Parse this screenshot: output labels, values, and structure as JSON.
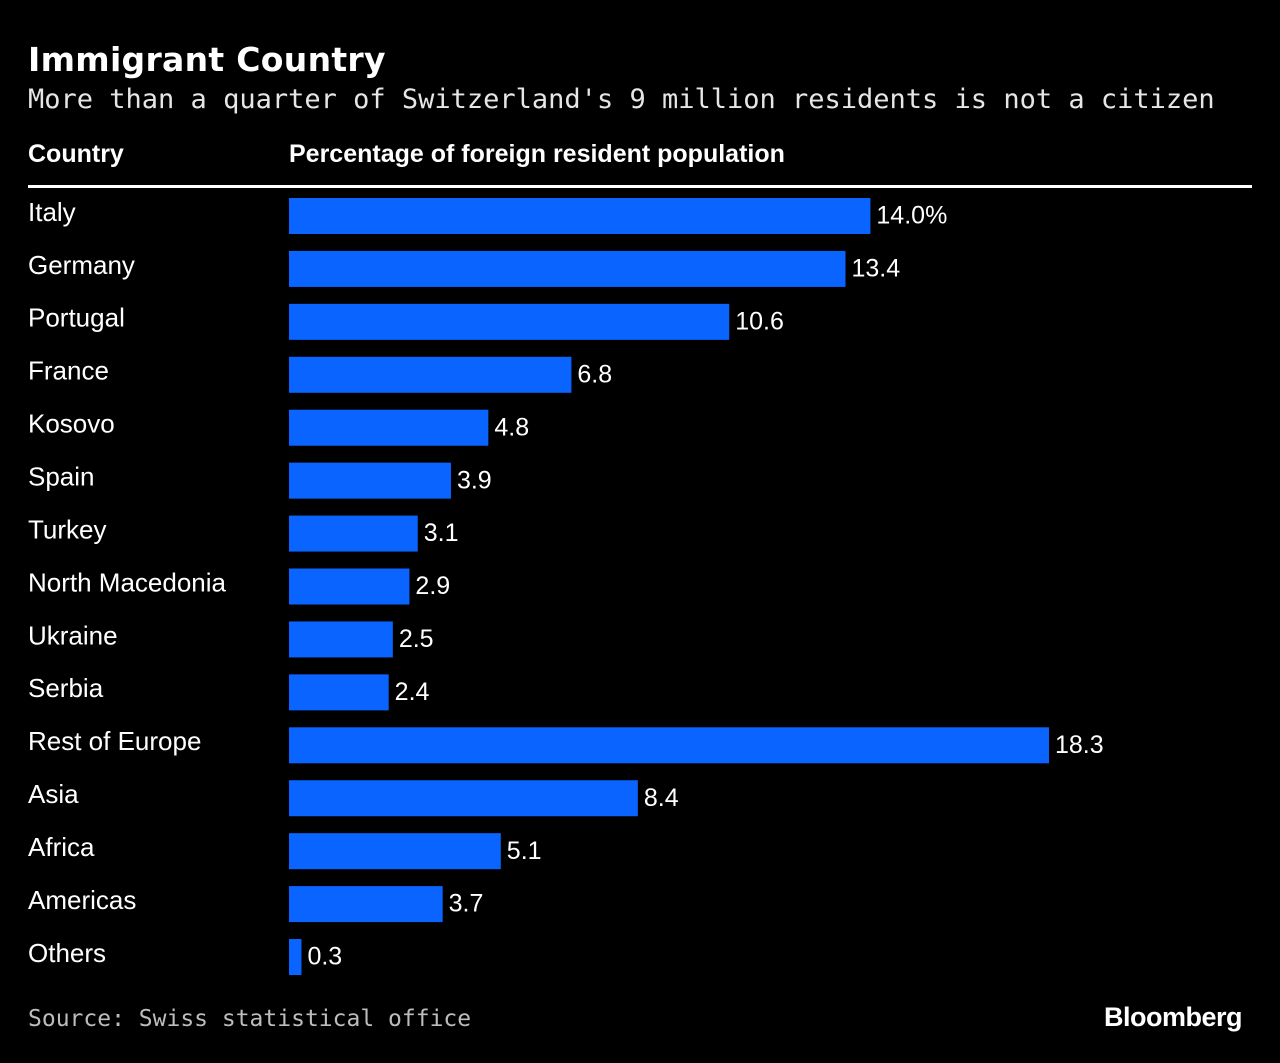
{
  "chart_data": {
    "type": "bar",
    "orientation": "horizontal",
    "title": "Immigrant Country",
    "subtitle": "More than a quarter of Switzerland's 9 million residents is not a citizen",
    "category_header": "Country",
    "value_header": "Percentage of foreign resident population",
    "categories": [
      "Italy",
      "Germany",
      "Portugal",
      "France",
      "Kosovo",
      "Spain",
      "Turkey",
      "North Macedonia",
      "Ukraine",
      "Serbia",
      "Rest of Europe",
      "Asia",
      "Africa",
      "Americas",
      "Others"
    ],
    "values": [
      14.0,
      13.4,
      10.6,
      6.8,
      4.8,
      3.9,
      3.1,
      2.9,
      2.5,
      2.4,
      18.3,
      8.4,
      5.1,
      3.7,
      0.3
    ],
    "value_labels": [
      "14.0%",
      "13.4",
      "10.6",
      "6.8",
      "4.8",
      "3.9",
      "3.1",
      "2.9",
      "2.5",
      "2.4",
      "18.3",
      "8.4",
      "5.1",
      "3.7",
      "0.3"
    ],
    "xlim": [
      0,
      18.3
    ],
    "bar_color": "#0a64ff",
    "grid": false,
    "source": "Source: Swiss statistical office",
    "brand": "Bloomberg"
  }
}
